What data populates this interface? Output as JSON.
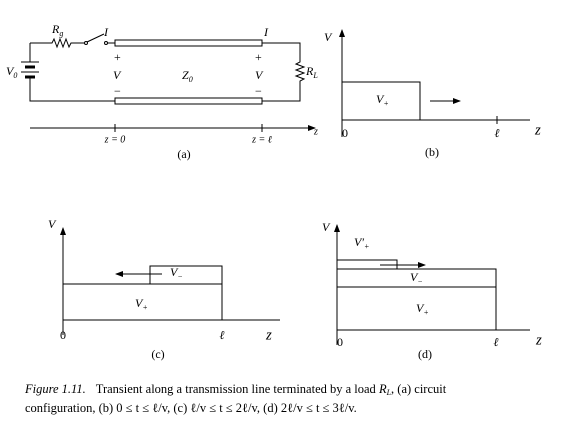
{
  "panel_a": {
    "rg": {
      "main": "R",
      "sub": "g"
    },
    "current_left": "I",
    "current_right": "I",
    "source": {
      "main": "V",
      "sub": "0"
    },
    "plus_left": "+",
    "voltage_left": "V",
    "impedance": {
      "main": "Z",
      "sub": "0"
    },
    "plus_right": "+",
    "voltage_right": "V",
    "load": {
      "main": "R",
      "sub": "L"
    },
    "minus_left": "−",
    "minus_right": "−",
    "z_start": "z = 0",
    "z_end": "z = ℓ",
    "axis": "z",
    "label": "(a)"
  },
  "panel_b": {
    "y_axis": "V",
    "wave": {
      "main": "V",
      "sub": "+"
    },
    "origin": "0",
    "length": "ℓ",
    "x_axis": "z",
    "label": "(b)"
  },
  "panel_c": {
    "y_axis": "V",
    "reflected": {
      "main": "V",
      "sub": "−"
    },
    "wave": {
      "main": "V",
      "sub": "+"
    },
    "origin": "0",
    "length": "ℓ",
    "x_axis": "z",
    "label": "(c)"
  },
  "panel_d": {
    "y_axis": "V",
    "rereflected": {
      "main": "V′",
      "sub": "+"
    },
    "reflected": {
      "main": "V",
      "sub": "−"
    },
    "wave": {
      "main": "V",
      "sub": "+"
    },
    "origin": "0",
    "length": "ℓ",
    "x_axis": "z",
    "label": "(d)"
  },
  "caption": {
    "figure": "Figure 1.11.",
    "line1": [
      "Transient along a transmission line terminated by a load ",
      "R",
      "L",
      ", (a) circuit"
    ],
    "line2": "configuration, (b) 0 ≤ t ≤ ℓ/v, (c) ℓ/v ≤ t ≤ 2ℓ/v, (d) 2ℓ/v ≤ t ≤ 3ℓ/v."
  }
}
